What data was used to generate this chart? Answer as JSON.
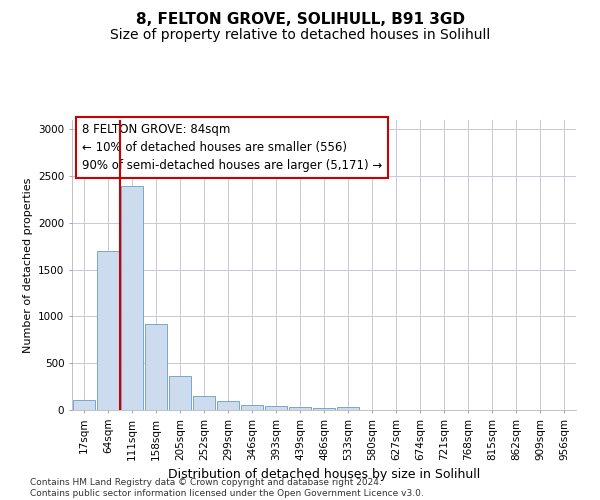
{
  "title": "8, FELTON GROVE, SOLIHULL, B91 3GD",
  "subtitle": "Size of property relative to detached houses in Solihull",
  "xlabel": "Distribution of detached houses by size in Solihull",
  "ylabel": "Number of detached properties",
  "categories": [
    "17sqm",
    "64sqm",
    "111sqm",
    "158sqm",
    "205sqm",
    "252sqm",
    "299sqm",
    "346sqm",
    "393sqm",
    "439sqm",
    "486sqm",
    "533sqm",
    "580sqm",
    "627sqm",
    "674sqm",
    "721sqm",
    "768sqm",
    "815sqm",
    "862sqm",
    "909sqm",
    "956sqm"
  ],
  "values": [
    110,
    1700,
    2390,
    920,
    360,
    150,
    100,
    55,
    40,
    30,
    25,
    30,
    0,
    0,
    0,
    0,
    0,
    0,
    0,
    0,
    0
  ],
  "bar_color": "#ccdcee",
  "bar_edge_color": "#6a9bbf",
  "grid_color": "#c8c8dc",
  "annotation_box_color": "#cc0000",
  "vline_color": "#cc0000",
  "annotation_text": "8 FELTON GROVE: 84sqm\n← 10% of detached houses are smaller (556)\n90% of semi-detached houses are larger (5,171) →",
  "footnote": "Contains HM Land Registry data © Crown copyright and database right 2024.\nContains public sector information licensed under the Open Government Licence v3.0.",
  "ylim": [
    0,
    3100
  ],
  "yticks": [
    0,
    500,
    1000,
    1500,
    2000,
    2500,
    3000
  ],
  "vline_x": 1.5,
  "title_fontsize": 11,
  "subtitle_fontsize": 10,
  "annotation_fontsize": 8.5,
  "ylabel_fontsize": 8,
  "xlabel_fontsize": 9,
  "footnote_fontsize": 6.5,
  "tick_fontsize": 7.5
}
